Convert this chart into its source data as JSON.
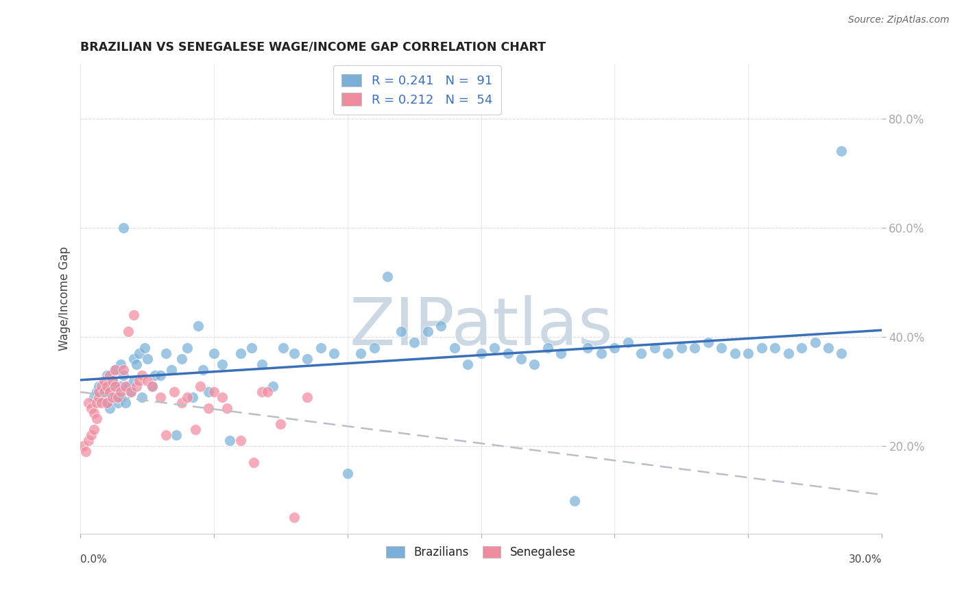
{
  "title": "BRAZILIAN VS SENEGALESE WAGE/INCOME GAP CORRELATION CHART",
  "source": "Source: ZipAtlas.com",
  "ylabel": "Wage/Income Gap",
  "xlim": [
    0.0,
    0.3
  ],
  "ylim": [
    0.04,
    0.9
  ],
  "ytick_vals": [
    0.2,
    0.4,
    0.6,
    0.8
  ],
  "brazil_r": "0.241",
  "brazil_n": "91",
  "senegal_r": "0.212",
  "senegal_n": "54",
  "brazil_scatter_color": "#7ab0d8",
  "senegal_scatter_color": "#f08ca0",
  "brazil_line_color": "#3a6fba",
  "senegal_line_color": "#b8bfc8",
  "watermark": "ZIPatlas",
  "watermark_color": "#ccd8e4",
  "brazil_x": [
    0.005,
    0.006,
    0.007,
    0.008,
    0.009,
    0.01,
    0.01,
    0.011,
    0.012,
    0.012,
    0.013,
    0.013,
    0.014,
    0.015,
    0.015,
    0.015,
    0.016,
    0.016,
    0.017,
    0.018,
    0.019,
    0.02,
    0.02,
    0.021,
    0.022,
    0.023,
    0.024,
    0.025,
    0.027,
    0.028,
    0.03,
    0.032,
    0.034,
    0.036,
    0.038,
    0.04,
    0.042,
    0.044,
    0.046,
    0.048,
    0.05,
    0.053,
    0.056,
    0.06,
    0.064,
    0.068,
    0.072,
    0.076,
    0.08,
    0.085,
    0.09,
    0.095,
    0.1,
    0.105,
    0.11,
    0.115,
    0.12,
    0.125,
    0.13,
    0.135,
    0.14,
    0.145,
    0.15,
    0.155,
    0.16,
    0.165,
    0.17,
    0.175,
    0.18,
    0.185,
    0.19,
    0.195,
    0.2,
    0.205,
    0.21,
    0.215,
    0.22,
    0.225,
    0.23,
    0.235,
    0.24,
    0.245,
    0.25,
    0.255,
    0.26,
    0.265,
    0.27,
    0.275,
    0.28,
    0.285,
    0.285
  ],
  "brazil_y": [
    0.29,
    0.3,
    0.31,
    0.29,
    0.3,
    0.28,
    0.33,
    0.27,
    0.32,
    0.31,
    0.29,
    0.34,
    0.28,
    0.31,
    0.35,
    0.29,
    0.33,
    0.6,
    0.28,
    0.31,
    0.3,
    0.36,
    0.32,
    0.35,
    0.37,
    0.29,
    0.38,
    0.36,
    0.31,
    0.33,
    0.33,
    0.37,
    0.34,
    0.22,
    0.36,
    0.38,
    0.29,
    0.42,
    0.34,
    0.3,
    0.37,
    0.35,
    0.21,
    0.37,
    0.38,
    0.35,
    0.31,
    0.38,
    0.37,
    0.36,
    0.38,
    0.37,
    0.15,
    0.37,
    0.38,
    0.51,
    0.41,
    0.39,
    0.41,
    0.42,
    0.38,
    0.35,
    0.37,
    0.38,
    0.37,
    0.36,
    0.35,
    0.38,
    0.37,
    0.1,
    0.38,
    0.37,
    0.38,
    0.39,
    0.37,
    0.38,
    0.37,
    0.38,
    0.38,
    0.39,
    0.38,
    0.37,
    0.37,
    0.38,
    0.38,
    0.37,
    0.38,
    0.39,
    0.38,
    0.37,
    0.74
  ],
  "senegal_x": [
    0.001,
    0.002,
    0.003,
    0.003,
    0.004,
    0.004,
    0.005,
    0.005,
    0.006,
    0.006,
    0.007,
    0.007,
    0.008,
    0.008,
    0.009,
    0.009,
    0.01,
    0.01,
    0.011,
    0.011,
    0.012,
    0.012,
    0.013,
    0.013,
    0.014,
    0.015,
    0.016,
    0.017,
    0.018,
    0.019,
    0.02,
    0.021,
    0.022,
    0.023,
    0.025,
    0.027,
    0.03,
    0.032,
    0.035,
    0.038,
    0.04,
    0.043,
    0.045,
    0.048,
    0.05,
    0.053,
    0.055,
    0.06,
    0.065,
    0.068,
    0.07,
    0.075,
    0.08,
    0.085
  ],
  "senegal_y": [
    0.2,
    0.19,
    0.21,
    0.28,
    0.22,
    0.27,
    0.23,
    0.26,
    0.25,
    0.28,
    0.29,
    0.3,
    0.31,
    0.28,
    0.3,
    0.32,
    0.28,
    0.31,
    0.3,
    0.33,
    0.29,
    0.32,
    0.31,
    0.34,
    0.29,
    0.3,
    0.34,
    0.31,
    0.41,
    0.3,
    0.44,
    0.31,
    0.32,
    0.33,
    0.32,
    0.31,
    0.29,
    0.22,
    0.3,
    0.28,
    0.29,
    0.23,
    0.31,
    0.27,
    0.3,
    0.29,
    0.27,
    0.21,
    0.17,
    0.3,
    0.3,
    0.24,
    0.07,
    0.29
  ]
}
